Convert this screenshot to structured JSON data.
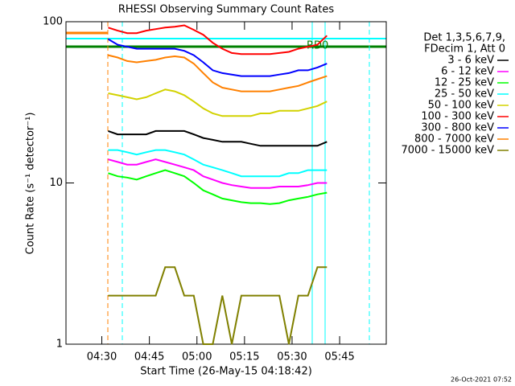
{
  "chart_data": {
    "type": "line",
    "title": "RHESSI Observing Summary Count Rates",
    "xlabel": "Start Time (26-May-15 04:18:42)",
    "ylabel": "Count Rate (s⁻¹ detector⁻¹)",
    "legend_header": [
      "Det 1,3,5,6,7,9,",
      "FDecim 1, Att 0"
    ],
    "annotations": [
      "RD0"
    ],
    "footer": "26-Oct-2021 07:52",
    "ylog": true,
    "ylim": [
      1,
      100
    ],
    "yticks": [
      1,
      10,
      100
    ],
    "xlim": [
      258.7,
      359.7
    ],
    "xticks": [
      {
        "value": 270,
        "label": "04:30"
      },
      {
        "value": 285,
        "label": "04:45"
      },
      {
        "value": 300,
        "label": "05:00"
      },
      {
        "value": 315,
        "label": "05:15"
      },
      {
        "value": 330,
        "label": "05:30"
      },
      {
        "value": 345,
        "label": "05:45"
      }
    ],
    "x": [
      272,
      275,
      278,
      281,
      284,
      287,
      290,
      293,
      296,
      299,
      302,
      305,
      308,
      311,
      314,
      317,
      320,
      323,
      326,
      329,
      332,
      335,
      338,
      341
    ],
    "series": [
      {
        "name": "3 - 6 keV",
        "color": "#000000",
        "values": [
          21,
          20,
          20,
          20,
          20,
          21,
          21,
          21,
          21,
          20,
          19,
          18.5,
          18,
          18,
          18,
          17.5,
          17,
          17,
          17,
          17,
          17,
          17,
          17,
          18
        ]
      },
      {
        "name": "6 - 12 keV",
        "color": "#ff00ff",
        "values": [
          14,
          13.5,
          13,
          13,
          13.5,
          14,
          13.5,
          13,
          12.5,
          12,
          11,
          10.5,
          10,
          9.7,
          9.5,
          9.3,
          9.3,
          9.3,
          9.5,
          9.5,
          9.5,
          9.7,
          10,
          10
        ]
      },
      {
        "name": "12 - 25 keV",
        "color": "#00ff00",
        "values": [
          11.5,
          11,
          10.8,
          10.5,
          11,
          11.5,
          12,
          11.5,
          11,
          10,
          9,
          8.5,
          8,
          7.8,
          7.6,
          7.5,
          7.5,
          7.4,
          7.5,
          7.8,
          8,
          8.2,
          8.5,
          8.7
        ]
      },
      {
        "name": "25 - 50 keV",
        "color": "#00ffff",
        "values": [
          16,
          16,
          15.5,
          15,
          15.5,
          16,
          16,
          15.5,
          15,
          14,
          13,
          12.5,
          12,
          11.5,
          11,
          11,
          11,
          11,
          11,
          11.5,
          11.5,
          12,
          12,
          12
        ]
      },
      {
        "name": "50 - 100 keV",
        "color": "#d2d200",
        "values": [
          36,
          35,
          34,
          33,
          34,
          36,
          38,
          37,
          35,
          32,
          29,
          27,
          26,
          26,
          26,
          26,
          27,
          27,
          28,
          28,
          28,
          29,
          30,
          32
        ]
      },
      {
        "name": "100 - 300 keV",
        "color": "#ff0000",
        "values": [
          92,
          88,
          85,
          85,
          88,
          90,
          92,
          93,
          95,
          89,
          83,
          74,
          68,
          64,
          63,
          63,
          63,
          63,
          64,
          65,
          68,
          70,
          72,
          82
        ]
      },
      {
        "name": "300 - 800 keV",
        "color": "#0000ff",
        "values": [
          78,
          72,
          70,
          68,
          68,
          68,
          68,
          68,
          66,
          62,
          56,
          50,
          48,
          47,
          46,
          46,
          46,
          46,
          47,
          48,
          50,
          50,
          52,
          55
        ]
      },
      {
        "name": "800 - 7000 keV",
        "color": "#ff8000",
        "values": [
          62,
          60,
          57,
          56,
          57,
          58,
          60,
          61,
          60,
          55,
          48,
          42,
          39,
          38,
          37,
          37,
          37,
          37,
          38,
          39,
          40,
          42,
          44,
          46
        ]
      },
      {
        "name": "7000 - 15000 keV",
        "color": "#808000",
        "values": [
          2,
          2,
          2,
          2,
          2,
          2,
          3,
          3,
          2,
          2,
          1,
          1,
          2,
          1,
          2,
          2,
          2,
          2,
          2,
          1,
          2,
          2,
          3,
          3
        ]
      }
    ]
  }
}
